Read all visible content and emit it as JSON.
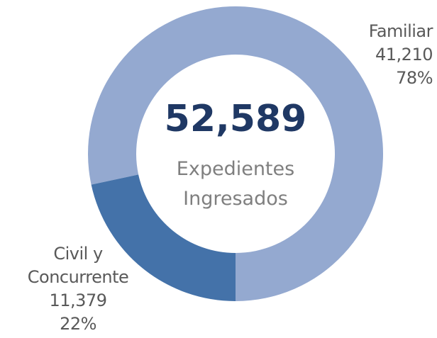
{
  "chart_data": {
    "type": "donut",
    "categories": [
      "Familiar",
      "Civil y Concurrente"
    ],
    "values": [
      41210,
      11379
    ],
    "value_labels": [
      "41,210",
      "11,379"
    ],
    "percents": [
      {
        "value": 78,
        "label": "78%"
      },
      {
        "value": 22,
        "label": "22%"
      }
    ],
    "colors": [
      "#94a9d0",
      "#4472a9"
    ],
    "center_value": {
      "value": 52589,
      "label": "52,589"
    },
    "center_label": "Expedientes Ingresados"
  }
}
